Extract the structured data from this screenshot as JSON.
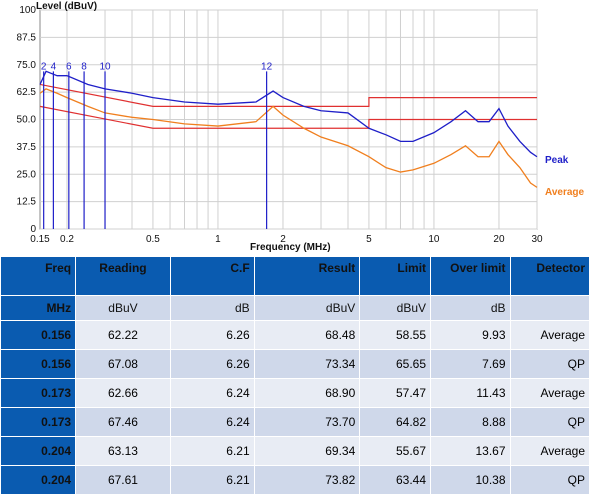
{
  "chart_data": {
    "type": "line",
    "ylabel": "Level (dBuV)",
    "xlabel": "Frequency (MHz)",
    "xscale": "log",
    "xlim": [
      0.15,
      30
    ],
    "ylim": [
      0,
      100
    ],
    "x_ticks": [
      0.15,
      0.2,
      0.5,
      1,
      2,
      5,
      10,
      20,
      30
    ],
    "x_tick_labels": [
      "0.15",
      "0.2",
      "0.5",
      "1",
      "2",
      "5",
      "10",
      "20",
      "30"
    ],
    "y_ticks": [
      0,
      12.5,
      25,
      37.5,
      50,
      62.5,
      75,
      87.5,
      100
    ],
    "y_tick_labels": [
      "0",
      "12.5",
      "25.0",
      "37.5",
      "50.0",
      "62.5",
      "75.0",
      "87.5",
      "100"
    ],
    "grid": true,
    "series": [
      {
        "name": "Peak",
        "color": "#1f1fc8",
        "x": [
          0.15,
          0.16,
          0.18,
          0.2,
          0.25,
          0.3,
          0.4,
          0.5,
          0.7,
          1,
          1.5,
          1.8,
          2,
          2.5,
          3,
          4,
          5,
          6,
          7,
          8,
          10,
          12,
          14,
          16,
          18,
          20,
          22,
          25,
          28,
          30
        ],
        "y": [
          66,
          72,
          70,
          70,
          66,
          64,
          62,
          60,
          58,
          57,
          58,
          63,
          60,
          56,
          54,
          53,
          46,
          43,
          40,
          40,
          44,
          49,
          54,
          49,
          49,
          55,
          47,
          40,
          35,
          33
        ]
      },
      {
        "name": "Average",
        "color": "#f07f1e",
        "x": [
          0.15,
          0.16,
          0.18,
          0.2,
          0.25,
          0.3,
          0.4,
          0.5,
          0.7,
          1,
          1.5,
          1.8,
          2,
          2.5,
          3,
          4,
          5,
          6,
          7,
          8,
          10,
          12,
          14,
          16,
          18,
          20,
          22,
          25,
          28,
          30
        ],
        "y": [
          62,
          64,
          62,
          60,
          56,
          53,
          51,
          50,
          48,
          47,
          49,
          56,
          52,
          46,
          42,
          38,
          33,
          28,
          26,
          27,
          30,
          34,
          38,
          33,
          33,
          40,
          34,
          28,
          21,
          19
        ]
      }
    ],
    "limit_lines": [
      {
        "color": "#e03030",
        "x": [
          0.15,
          0.5,
          5,
          5,
          30
        ],
        "y": [
          66,
          56,
          56,
          60,
          60
        ]
      },
      {
        "color": "#e03030",
        "x": [
          0.15,
          0.5,
          5,
          5,
          30
        ],
        "y": [
          56,
          46,
          46,
          50,
          50
        ]
      }
    ],
    "markers": [
      {
        "label": "2",
        "x": 0.156
      },
      {
        "label": "4",
        "x": 0.173
      },
      {
        "label": "6",
        "x": 0.204
      },
      {
        "label": "8",
        "x": 0.24
      },
      {
        "label": "10",
        "x": 0.3
      },
      {
        "label": "12",
        "x": 1.68
      }
    ],
    "legend": {
      "peak": "Peak",
      "average": "Average",
      "placement": "right"
    }
  },
  "table": {
    "headers": [
      "Freq",
      "Reading",
      "C.F",
      "Result",
      "Limit",
      "Over limit",
      "Detector"
    ],
    "units": [
      "MHz",
      "dBuV",
      "dB",
      "dBuV",
      "dBuV",
      "dB",
      ""
    ],
    "rows": [
      [
        "0.156",
        "62.22",
        "6.26",
        "68.48",
        "58.55",
        "9.93",
        "Average"
      ],
      [
        "0.156",
        "67.08",
        "6.26",
        "73.34",
        "65.65",
        "7.69",
        "QP"
      ],
      [
        "0.173",
        "62.66",
        "6.24",
        "68.90",
        "57.47",
        "11.43",
        "Average"
      ],
      [
        "0.173",
        "67.46",
        "6.24",
        "73.70",
        "64.82",
        "8.88",
        "QP"
      ],
      [
        "0.204",
        "63.13",
        "6.21",
        "69.34",
        "55.67",
        "13.67",
        "Average"
      ],
      [
        "0.204",
        "67.61",
        "6.21",
        "73.82",
        "63.44",
        "10.38",
        "QP"
      ]
    ]
  }
}
